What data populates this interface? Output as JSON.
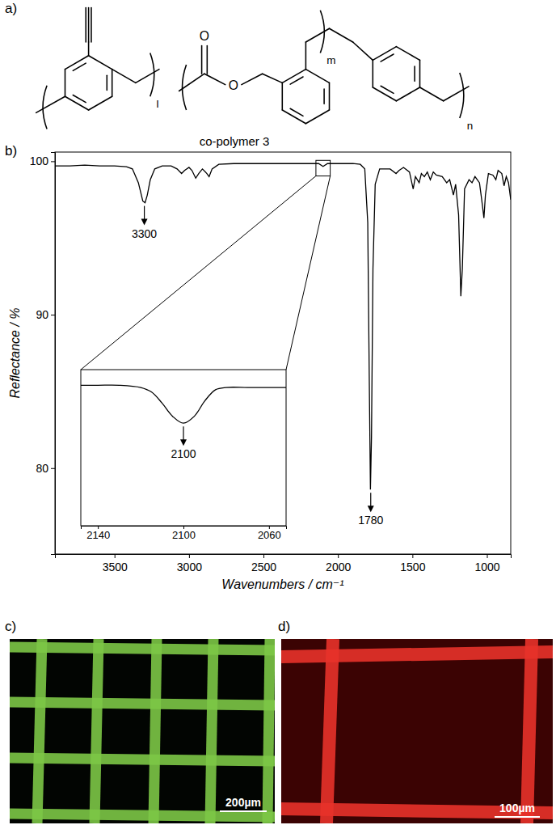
{
  "panels": {
    "labels": [
      "a)",
      "b)",
      "c)",
      "d)"
    ]
  },
  "structure": {
    "caption": "co-polymer 3",
    "atoms": [
      "O",
      "O"
    ],
    "subscripts": [
      "l",
      "m",
      "n"
    ]
  },
  "images": {
    "scale_bars": [
      "200µm",
      "100µm"
    ]
  },
  "chart_data": [
    {
      "type": "line",
      "x_label": "Wavenumbers / cm⁻¹",
      "y_label": "Reflectance / %",
      "x": [
        3900,
        3800,
        3700,
        3600,
        3500,
        3420,
        3380,
        3340,
        3310,
        3295,
        3280,
        3260,
        3230,
        3180,
        3120,
        3080,
        3050,
        3030,
        3000,
        2980,
        2955,
        2935,
        2910,
        2880,
        2865,
        2845,
        2800,
        2700,
        2600,
        2500,
        2400,
        2300,
        2200,
        2130,
        2100,
        2070,
        2000,
        1900,
        1850,
        1820,
        1800,
        1790,
        1782,
        1775,
        1765,
        1750,
        1720,
        1650,
        1610,
        1590,
        1560,
        1520,
        1495,
        1480,
        1455,
        1440,
        1420,
        1400,
        1380,
        1360,
        1340,
        1300,
        1270,
        1250,
        1225,
        1210,
        1190,
        1175,
        1165,
        1150,
        1120,
        1100,
        1080,
        1050,
        1035,
        1020,
        1010,
        990,
        960,
        940,
        925,
        900,
        885,
        870,
        855,
        840
      ],
      "series": [
        {
          "color": "#000000",
          "values": [
            99.7,
            99.7,
            99.75,
            99.7,
            99.7,
            99.65,
            99.5,
            98.6,
            97.4,
            97.3,
            97.8,
            98.8,
            99.5,
            99.7,
            99.7,
            99.5,
            99.2,
            99.4,
            99.6,
            99.4,
            98.9,
            99.2,
            99.5,
            99.2,
            99.0,
            99.5,
            99.8,
            99.85,
            99.85,
            99.85,
            99.85,
            99.85,
            99.85,
            99.85,
            99.66,
            99.85,
            99.85,
            99.85,
            99.8,
            99.5,
            96.0,
            86.0,
            78.6,
            82.0,
            93.0,
            98.5,
            99.5,
            99.5,
            99.2,
            99.4,
            99.6,
            99.3,
            98.2,
            99.0,
            98.6,
            99.2,
            99.0,
            99.3,
            98.8,
            99.3,
            99.1,
            99.0,
            98.6,
            98.8,
            97.8,
            98.5,
            96.5,
            91.2,
            93.0,
            98.2,
            98.8,
            98.6,
            99.0,
            98.6,
            97.5,
            96.3,
            97.8,
            99.2,
            99.1,
            98.8,
            99.4,
            99.2,
            98.4,
            99.0,
            98.6,
            97.5
          ]
        }
      ],
      "xlim": [
        3900,
        840
      ],
      "ylim": [
        74.4,
        100.6
      ],
      "xticks": [
        3500,
        3000,
        2500,
        2000,
        1500,
        1000
      ],
      "yticks": [
        80,
        90,
        100
      ],
      "annotations": [
        {
          "text": "3300",
          "x": 3300
        },
        {
          "text": "1780",
          "x": 1780
        }
      ]
    },
    {
      "type": "line",
      "x": [
        2148,
        2140,
        2130,
        2120,
        2115,
        2110,
        2105,
        2100,
        2095,
        2090,
        2085,
        2080,
        2070,
        2060,
        2052
      ],
      "series": [
        {
          "color": "#000000",
          "values": [
            99.83,
            99.83,
            99.83,
            99.82,
            99.8,
            99.75,
            99.69,
            99.66,
            99.69,
            99.76,
            99.81,
            99.82,
            99.82,
            99.82,
            99.82
          ]
        }
      ],
      "xlim": [
        2148,
        2052
      ],
      "ylim": [
        99.2,
        99.9
      ],
      "xticks": [
        2140,
        2100,
        2060
      ],
      "tick_labels": "x",
      "annotations": [
        {
          "text": "2100",
          "x": 2100
        }
      ]
    }
  ]
}
